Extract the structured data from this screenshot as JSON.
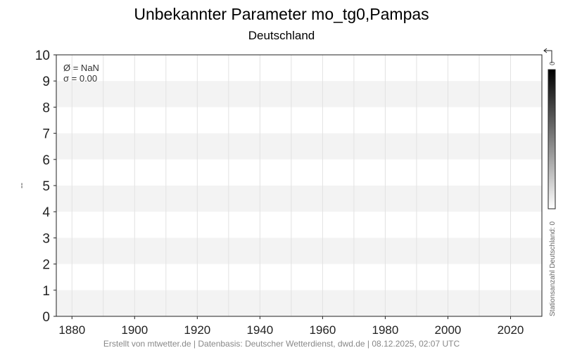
{
  "chart_data": {
    "type": "line",
    "title": "Unbekannter Parameter mo_tg0,Pampas",
    "subtitle": "Deutschland",
    "xlabel": "",
    "ylabel": "--",
    "xlim": [
      1875,
      2030
    ],
    "ylim": [
      0,
      10
    ],
    "xticks": [
      1880,
      1900,
      1920,
      1940,
      1960,
      1980,
      2000,
      2020
    ],
    "yticks": [
      0,
      1,
      2,
      3,
      4,
      5,
      6,
      7,
      8,
      9,
      10
    ],
    "grid": true,
    "series": [],
    "stats": {
      "mean": "Ø = NaN",
      "sigma": "σ = 0.00"
    },
    "colorbar": {
      "label": "Stationsanzahl Deutschland: 0",
      "tick": "0",
      "colors": [
        "#000000",
        "#ffffff"
      ]
    },
    "footer": "Erstellt von mtwetter.de | Datenbasis: Deutscher Wetterdienst, dwd.de | 08.12.2025, 02:07 UTC"
  }
}
